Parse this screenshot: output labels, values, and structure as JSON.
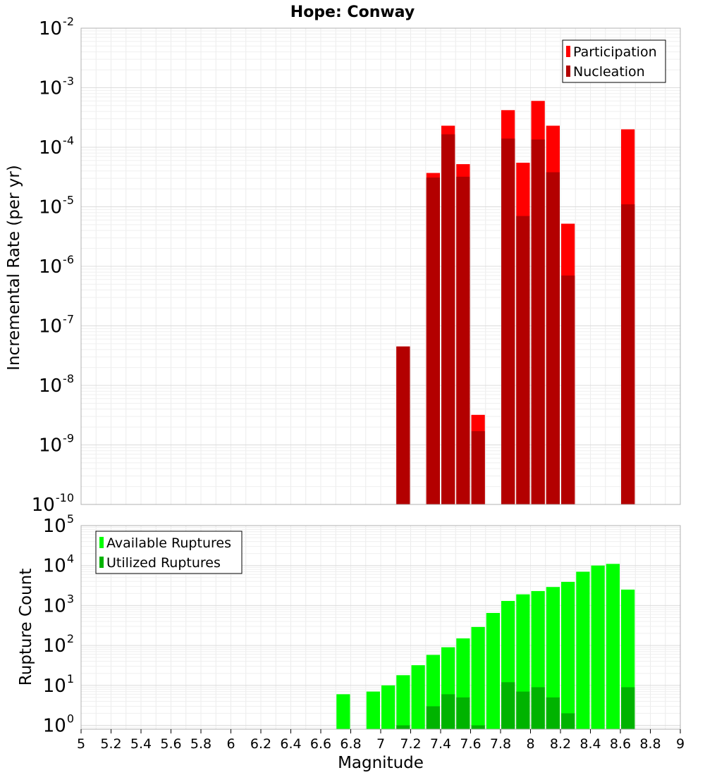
{
  "chart_data": [
    {
      "type": "bar",
      "title": "Hope: Conway",
      "ylabel": "Incremental Rate (per yr)",
      "xlabel": "",
      "xlim": [
        5,
        9
      ],
      "ylim": [
        1e-10,
        0.01
      ],
      "y_scale": "log",
      "grid": true,
      "legend_placement": "top-right",
      "y_ticks": [
        {
          "base": "10",
          "exp": "-10",
          "value": 1e-10
        },
        {
          "base": "10",
          "exp": "-9",
          "value": 1e-09
        },
        {
          "base": "10",
          "exp": "-8",
          "value": 1e-08
        },
        {
          "base": "10",
          "exp": "-7",
          "value": 1e-07
        },
        {
          "base": "10",
          "exp": "-6",
          "value": 1e-06
        },
        {
          "base": "10",
          "exp": "-5",
          "value": 1e-05
        },
        {
          "base": "10",
          "exp": "-4",
          "value": 0.0001
        },
        {
          "base": "10",
          "exp": "-3",
          "value": 0.001
        },
        {
          "base": "10",
          "exp": "-2",
          "value": 0.01
        }
      ],
      "series": [
        {
          "name": "Participation",
          "color": "#ff0000",
          "points": [
            {
              "x": 7.15,
              "y": 4.5e-08
            },
            {
              "x": 7.35,
              "y": 3.7e-05
            },
            {
              "x": 7.45,
              "y": 0.00023
            },
            {
              "x": 7.55,
              "y": 5.2e-05
            },
            {
              "x": 7.65,
              "y": 3.2e-09
            },
            {
              "x": 7.85,
              "y": 0.00042
            },
            {
              "x": 7.95,
              "y": 5.5e-05
            },
            {
              "x": 8.05,
              "y": 0.0006
            },
            {
              "x": 8.15,
              "y": 0.00023
            },
            {
              "x": 8.25,
              "y": 5.2e-06
            },
            {
              "x": 8.65,
              "y": 0.0002
            }
          ]
        },
        {
          "name": "Nucleation",
          "color": "#b30000",
          "points": [
            {
              "x": 7.15,
              "y": 4.5e-08
            },
            {
              "x": 7.35,
              "y": 3.1e-05
            },
            {
              "x": 7.45,
              "y": 0.000165
            },
            {
              "x": 7.55,
              "y": 3.2e-05
            },
            {
              "x": 7.65,
              "y": 1.7e-09
            },
            {
              "x": 7.85,
              "y": 0.00014
            },
            {
              "x": 7.95,
              "y": 7e-06
            },
            {
              "x": 8.05,
              "y": 0.000135
            },
            {
              "x": 8.15,
              "y": 3.8e-05
            },
            {
              "x": 8.25,
              "y": 7e-07
            },
            {
              "x": 8.65,
              "y": 1.1e-05
            }
          ]
        }
      ]
    },
    {
      "type": "bar",
      "title": "",
      "ylabel": "Rupture Count",
      "xlabel": "Magnitude",
      "xlim": [
        5,
        9
      ],
      "ylim": [
        0.8,
        100000
      ],
      "y_scale": "log",
      "grid": true,
      "legend_placement": "top-left",
      "x_ticks": [
        "5",
        "5.2",
        "5.4",
        "5.6",
        "5.8",
        "6",
        "6.2",
        "6.4",
        "6.6",
        "6.8",
        "7",
        "7.2",
        "7.4",
        "7.6",
        "7.8",
        "8",
        "8.2",
        "8.4",
        "8.6",
        "8.8",
        "9"
      ],
      "y_ticks": [
        {
          "base": "10",
          "exp": "0",
          "value": 1
        },
        {
          "base": "10",
          "exp": "1",
          "value": 10
        },
        {
          "base": "10",
          "exp": "2",
          "value": 100
        },
        {
          "base": "10",
          "exp": "3",
          "value": 1000
        },
        {
          "base": "10",
          "exp": "4",
          "value": 10000
        },
        {
          "base": "10",
          "exp": "5",
          "value": 100000
        }
      ],
      "series": [
        {
          "name": "Available Ruptures",
          "color": "#00ff00",
          "points": [
            {
              "x": 6.75,
              "y": 6
            },
            {
              "x": 6.95,
              "y": 7
            },
            {
              "x": 7.05,
              "y": 10
            },
            {
              "x": 7.15,
              "y": 18
            },
            {
              "x": 7.25,
              "y": 32
            },
            {
              "x": 7.35,
              "y": 58
            },
            {
              "x": 7.45,
              "y": 90
            },
            {
              "x": 7.55,
              "y": 150
            },
            {
              "x": 7.65,
              "y": 290
            },
            {
              "x": 7.75,
              "y": 650
            },
            {
              "x": 7.85,
              "y": 1300
            },
            {
              "x": 7.95,
              "y": 1900
            },
            {
              "x": 8.05,
              "y": 2300
            },
            {
              "x": 8.15,
              "y": 2900
            },
            {
              "x": 8.25,
              "y": 3900
            },
            {
              "x": 8.35,
              "y": 7000
            },
            {
              "x": 8.45,
              "y": 10000
            },
            {
              "x": 8.55,
              "y": 11000
            },
            {
              "x": 8.65,
              "y": 2500
            }
          ]
        },
        {
          "name": "Utilized Ruptures",
          "color": "#00b300",
          "points": [
            {
              "x": 7.15,
              "y": 1
            },
            {
              "x": 7.35,
              "y": 3
            },
            {
              "x": 7.45,
              "y": 6
            },
            {
              "x": 7.55,
              "y": 5
            },
            {
              "x": 7.65,
              "y": 1
            },
            {
              "x": 7.85,
              "y": 12
            },
            {
              "x": 7.95,
              "y": 7
            },
            {
              "x": 8.05,
              "y": 9
            },
            {
              "x": 8.15,
              "y": 5
            },
            {
              "x": 8.25,
              "y": 2
            },
            {
              "x": 8.65,
              "y": 9
            }
          ]
        }
      ]
    }
  ]
}
